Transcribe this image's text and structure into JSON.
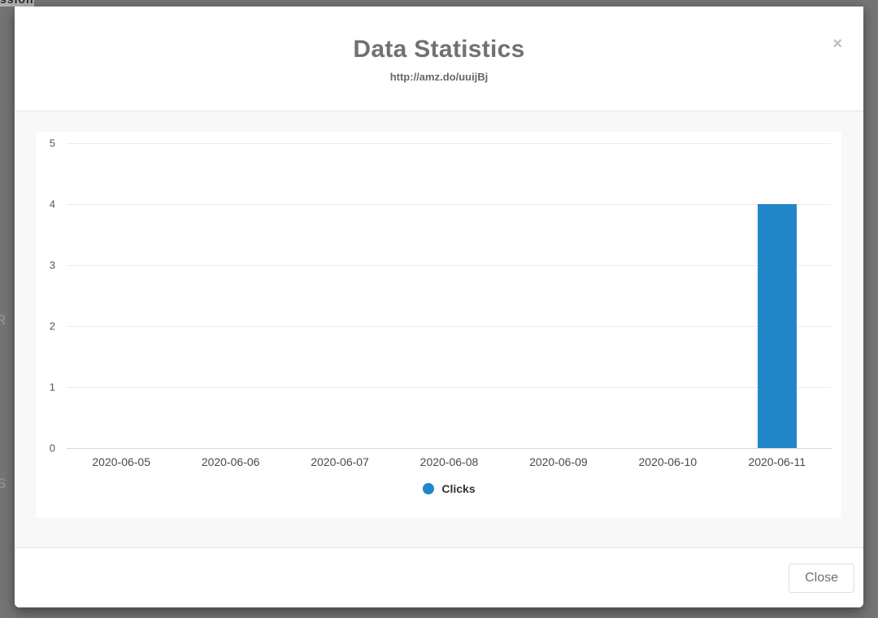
{
  "background_page": {
    "top_left_fragment": "ssion",
    "left_edge_fragment_upper": "R",
    "left_edge_fragment_lower": "S"
  },
  "modal": {
    "title": "Data Statistics",
    "url": "http://amz.do/uuijBj",
    "close_icon_glyph": "×",
    "close_button_label": "Close"
  },
  "chart_data": {
    "type": "bar",
    "title": "",
    "categories": [
      "2020-06-05",
      "2020-06-06",
      "2020-06-07",
      "2020-06-08",
      "2020-06-09",
      "2020-06-10",
      "2020-06-11"
    ],
    "series": [
      {
        "name": "Clicks",
        "color": "#2287c8",
        "values": [
          0,
          0,
          0,
          0,
          0,
          0,
          4
        ]
      }
    ],
    "ylim": [
      0,
      5
    ],
    "yticks": [
      5,
      4,
      3,
      2,
      1,
      0
    ],
    "grid": "horizontal",
    "legend_position": "bottom"
  },
  "colors": {
    "accent": "#2287c8"
  }
}
